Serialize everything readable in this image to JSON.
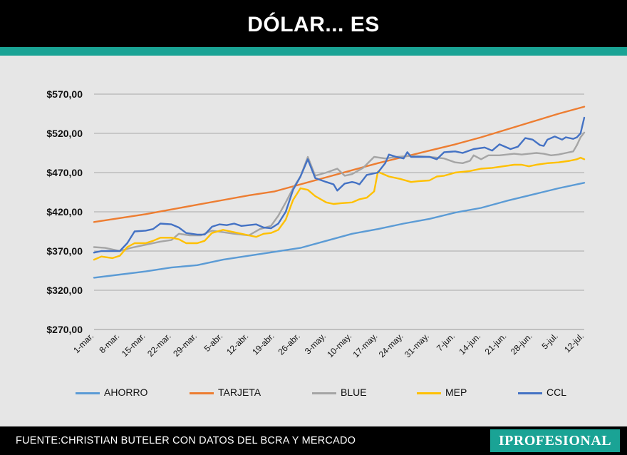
{
  "header": {
    "title": "DÓLAR... ES"
  },
  "colors": {
    "accent": "#1aa395",
    "background": "#e6e6e6",
    "brand_bg": "#1aa395"
  },
  "footer": {
    "source": "FUENTE:CHRISTIAN BUTELER CON DATOS DEL BCRA Y MERCADO",
    "brand": "IPROFESIONAL"
  },
  "chart_data": {
    "type": "line",
    "title": "",
    "xlabel": "",
    "ylabel": "",
    "ylim": [
      270,
      570
    ],
    "y_ticks": [
      270,
      320,
      370,
      420,
      470,
      520,
      570
    ],
    "y_tick_labels": [
      "$270,00",
      "$320,00",
      "$370,00",
      "$420,00",
      "$470,00",
      "$520,00",
      "$570,00"
    ],
    "x_range": [
      0,
      133
    ],
    "x_ticks": [
      0,
      7,
      14,
      21,
      28,
      35,
      42,
      49,
      56,
      63,
      70,
      77,
      84,
      91,
      98,
      105,
      112,
      119,
      126,
      133
    ],
    "x_tick_labels": [
      "1-mar.",
      "8-mar.",
      "15-mar.",
      "22-mar.",
      "29-mar.",
      "5-abr.",
      "12-abr.",
      "19-abr.",
      "26-abr.",
      "3-may.",
      "10-may.",
      "17-may.",
      "24-may.",
      "31-may.",
      "7-jun.",
      "14-jun.",
      "21-jun.",
      "28-jun.",
      "5-jul.",
      "12-jul."
    ],
    "grid": true,
    "legend_position": "bottom",
    "series": [
      {
        "name": "AHORRO",
        "color": "#5b9bd5",
        "points": [
          [
            0,
            336
          ],
          [
            7,
            340
          ],
          [
            14,
            344
          ],
          [
            21,
            349
          ],
          [
            28,
            352
          ],
          [
            35,
            359
          ],
          [
            42,
            364
          ],
          [
            49,
            369
          ],
          [
            56,
            374
          ],
          [
            63,
            383
          ],
          [
            70,
            392
          ],
          [
            77,
            398
          ],
          [
            84,
            405
          ],
          [
            91,
            411
          ],
          [
            98,
            419
          ],
          [
            105,
            425
          ],
          [
            112,
            434
          ],
          [
            119,
            442
          ],
          [
            126,
            450
          ],
          [
            133,
            457
          ]
        ]
      },
      {
        "name": "TARJETA",
        "color": "#ed7d31",
        "points": [
          [
            0,
            407
          ],
          [
            7,
            412
          ],
          [
            14,
            417
          ],
          [
            21,
            423
          ],
          [
            28,
            429
          ],
          [
            35,
            435
          ],
          [
            42,
            441
          ],
          [
            49,
            446
          ],
          [
            56,
            455
          ],
          [
            63,
            464
          ],
          [
            70,
            473
          ],
          [
            77,
            482
          ],
          [
            84,
            490
          ],
          [
            91,
            498
          ],
          [
            98,
            506
          ],
          [
            105,
            515
          ],
          [
            112,
            525
          ],
          [
            119,
            535
          ],
          [
            126,
            545
          ],
          [
            133,
            554
          ]
        ]
      },
      {
        "name": "BLUE",
        "color": "#a5a5a5",
        "points": [
          [
            0,
            375
          ],
          [
            3,
            374
          ],
          [
            7,
            370
          ],
          [
            10,
            374
          ],
          [
            14,
            378
          ],
          [
            18,
            382
          ],
          [
            21,
            384
          ],
          [
            23,
            392
          ],
          [
            26,
            390
          ],
          [
            29,
            390
          ],
          [
            32,
            396
          ],
          [
            35,
            394
          ],
          [
            38,
            392
          ],
          [
            42,
            390
          ],
          [
            45,
            398
          ],
          [
            48,
            402
          ],
          [
            50,
            415
          ],
          [
            52,
            432
          ],
          [
            54,
            450
          ],
          [
            56,
            465
          ],
          [
            58,
            490
          ],
          [
            60,
            466
          ],
          [
            63,
            470
          ],
          [
            66,
            475
          ],
          [
            68,
            466
          ],
          [
            70,
            468
          ],
          [
            73,
            476
          ],
          [
            76,
            490
          ],
          [
            79,
            488
          ],
          [
            82,
            490
          ],
          [
            85,
            491
          ],
          [
            88,
            491
          ],
          [
            91,
            490
          ],
          [
            95,
            488
          ],
          [
            98,
            483
          ],
          [
            100,
            482
          ],
          [
            102,
            485
          ],
          [
            103,
            492
          ],
          [
            105,
            487
          ],
          [
            107,
            492
          ],
          [
            110,
            492
          ],
          [
            112,
            493
          ],
          [
            114,
            494
          ],
          [
            116,
            493
          ],
          [
            118,
            494
          ],
          [
            120,
            495
          ],
          [
            122,
            494
          ],
          [
            124,
            492
          ],
          [
            126,
            493
          ],
          [
            128,
            495
          ],
          [
            130,
            497
          ],
          [
            131,
            505
          ],
          [
            132,
            515
          ],
          [
            133,
            521
          ]
        ]
      },
      {
        "name": "MEP",
        "color": "#ffc000",
        "points": [
          [
            0,
            359
          ],
          [
            2,
            363
          ],
          [
            5,
            361
          ],
          [
            7,
            364
          ],
          [
            9,
            375
          ],
          [
            11,
            380
          ],
          [
            14,
            380
          ],
          [
            16,
            383
          ],
          [
            18,
            387
          ],
          [
            21,
            387
          ],
          [
            23,
            385
          ],
          [
            25,
            380
          ],
          [
            28,
            380
          ],
          [
            30,
            383
          ],
          [
            32,
            393
          ],
          [
            35,
            397
          ],
          [
            37,
            395
          ],
          [
            40,
            392
          ],
          [
            42,
            390
          ],
          [
            44,
            388
          ],
          [
            46,
            392
          ],
          [
            48,
            393
          ],
          [
            50,
            397
          ],
          [
            52,
            410
          ],
          [
            54,
            435
          ],
          [
            56,
            450
          ],
          [
            58,
            448
          ],
          [
            60,
            440
          ],
          [
            63,
            432
          ],
          [
            65,
            430
          ],
          [
            67,
            431
          ],
          [
            70,
            432
          ],
          [
            72,
            436
          ],
          [
            74,
            438
          ],
          [
            76,
            446
          ],
          [
            77,
            471
          ],
          [
            80,
            465
          ],
          [
            83,
            462
          ],
          [
            86,
            458
          ],
          [
            88,
            459
          ],
          [
            91,
            460
          ],
          [
            93,
            465
          ],
          [
            95,
            466
          ],
          [
            98,
            470
          ],
          [
            100,
            471
          ],
          [
            102,
            472
          ],
          [
            105,
            475
          ],
          [
            108,
            476
          ],
          [
            111,
            478
          ],
          [
            114,
            480
          ],
          [
            116,
            480
          ],
          [
            118,
            478
          ],
          [
            120,
            480
          ],
          [
            123,
            482
          ],
          [
            126,
            483
          ],
          [
            129,
            485
          ],
          [
            131,
            487
          ],
          [
            132,
            489
          ],
          [
            133,
            487
          ]
        ]
      },
      {
        "name": "CCL",
        "color": "#4472c4",
        "points": [
          [
            0,
            368
          ],
          [
            2,
            370
          ],
          [
            5,
            370
          ],
          [
            7,
            370
          ],
          [
            9,
            380
          ],
          [
            11,
            395
          ],
          [
            14,
            396
          ],
          [
            16,
            398
          ],
          [
            18,
            405
          ],
          [
            21,
            404
          ],
          [
            23,
            400
          ],
          [
            25,
            393
          ],
          [
            28,
            391
          ],
          [
            30,
            391
          ],
          [
            32,
            401
          ],
          [
            34,
            404
          ],
          [
            36,
            403
          ],
          [
            38,
            405
          ],
          [
            40,
            402
          ],
          [
            42,
            403
          ],
          [
            44,
            404
          ],
          [
            46,
            400
          ],
          [
            48,
            399
          ],
          [
            50,
            405
          ],
          [
            52,
            420
          ],
          [
            54,
            448
          ],
          [
            56,
            465
          ],
          [
            58,
            487
          ],
          [
            60,
            463
          ],
          [
            63,
            458
          ],
          [
            65,
            455
          ],
          [
            66,
            447
          ],
          [
            68,
            456
          ],
          [
            70,
            458
          ],
          [
            71,
            457
          ],
          [
            72,
            455
          ],
          [
            74,
            467
          ],
          [
            77,
            470
          ],
          [
            79,
            482
          ],
          [
            80,
            493
          ],
          [
            82,
            490
          ],
          [
            84,
            488
          ],
          [
            85,
            496
          ],
          [
            86,
            490
          ],
          [
            88,
            490
          ],
          [
            91,
            490
          ],
          [
            93,
            487
          ],
          [
            95,
            496
          ],
          [
            98,
            497
          ],
          [
            100,
            495
          ],
          [
            103,
            500
          ],
          [
            106,
            502
          ],
          [
            108,
            498
          ],
          [
            110,
            506
          ],
          [
            113,
            500
          ],
          [
            115,
            503
          ],
          [
            117,
            514
          ],
          [
            119,
            512
          ],
          [
            121,
            505
          ],
          [
            122,
            504
          ],
          [
            123,
            512
          ],
          [
            125,
            516
          ],
          [
            127,
            512
          ],
          [
            128,
            515
          ],
          [
            130,
            513
          ],
          [
            131,
            515
          ],
          [
            132,
            520
          ],
          [
            133,
            540
          ]
        ]
      }
    ]
  }
}
